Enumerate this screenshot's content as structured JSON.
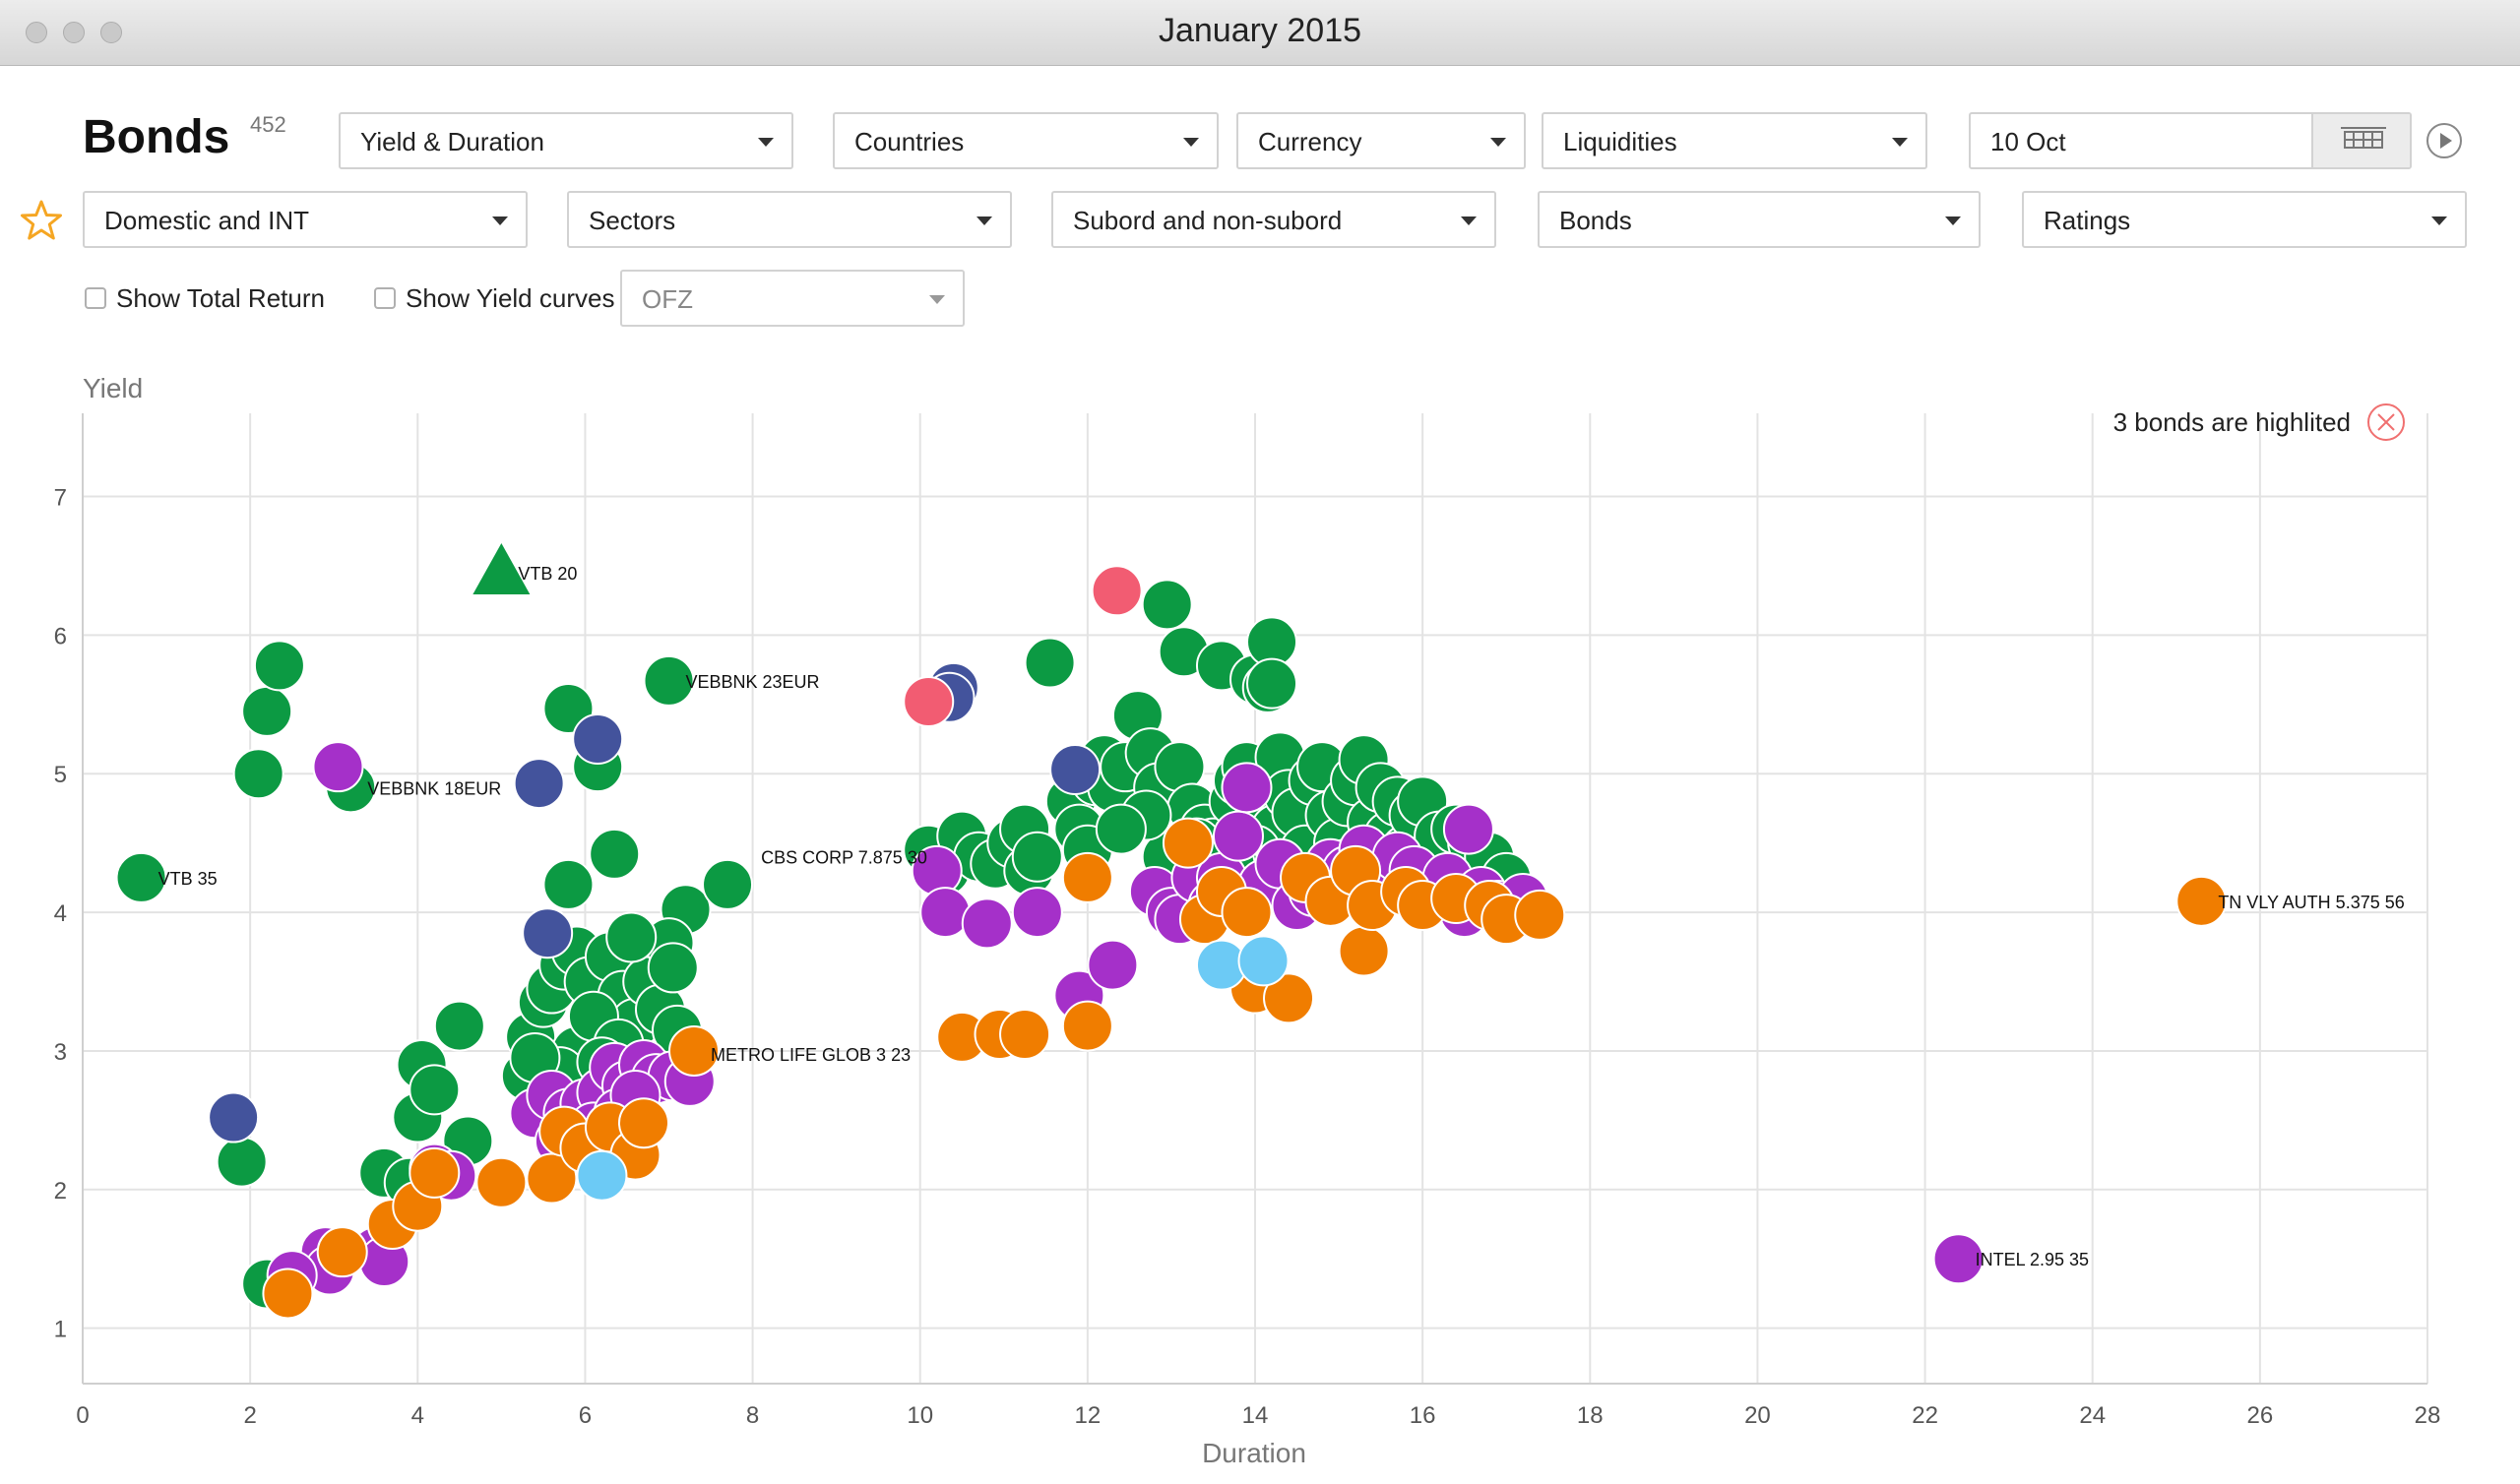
{
  "window": {
    "title": "January 2015"
  },
  "header": {
    "title": "Bonds",
    "count": "452"
  },
  "filters_row1": {
    "view": "Yield & Duration",
    "countries": "Countries",
    "currency": "Currency",
    "liquidities": "Liquidities",
    "date": "10 Oct"
  },
  "filters_row2": {
    "issuer_type": "Domestic and INT",
    "sectors": "Sectors",
    "subord": "Subord and non-subord",
    "bonds": "Bonds",
    "ratings": "Ratings"
  },
  "options": {
    "show_total_return": "Show Total Return",
    "show_yield_curves": "Show Yield curves",
    "curve_select": "OFZ",
    "show_total_return_checked": false,
    "show_yield_curves_checked": false
  },
  "highlight": {
    "text": "3 bonds are highlited"
  },
  "icons": {
    "favorite": "star-icon",
    "calendar": "calendar-grid-icon",
    "play": "play-icon",
    "clear": "close-circle-icon"
  },
  "colors": {
    "green": "#0c9a43",
    "purple": "#a530c9",
    "orange": "#f07d00",
    "navy": "#43539c",
    "light_blue": "#6ccaf5",
    "pink": "#f25c72",
    "star": "#f5a623",
    "clear": "#f07070"
  },
  "chart_data": {
    "type": "scatter",
    "xlabel": "Duration",
    "ylabel": "Yield",
    "xlim": [
      0,
      28
    ],
    "ylim": [
      0.6,
      7.6
    ],
    "xticks": [
      0,
      2,
      4,
      6,
      8,
      10,
      12,
      14,
      16,
      18,
      20,
      22,
      24,
      26,
      28
    ],
    "yticks": [
      1,
      2,
      3,
      4,
      5,
      6,
      7
    ],
    "grid": true,
    "labels": [
      {
        "text": "VTB 20",
        "x": 5.0,
        "y": 6.45,
        "dx": 0.2
      },
      {
        "text": "VEBBNK 23EUR",
        "x": 7.0,
        "y": 5.67,
        "dx": 0.2
      },
      {
        "text": "VEBBNK 18EUR",
        "x": 3.2,
        "y": 4.9,
        "dx": 0.2
      },
      {
        "text": "VTB 35",
        "x": 0.7,
        "y": 4.25,
        "dx": 0.2
      },
      {
        "text": "CBS CORP 7.875 30",
        "x": 10.1,
        "y": 4.4,
        "dx": -2.0
      },
      {
        "text": "METRO LIFE GLOB 3 23",
        "x": 7.3,
        "y": 2.98,
        "dx": 0.2
      },
      {
        "text": "TN VLY AUTH 5.375 56",
        "x": 25.3,
        "y": 4.08,
        "dx": 0.2
      },
      {
        "text": "INTEL 2.95 35",
        "x": 22.4,
        "y": 1.5,
        "dx": 0.2
      }
    ],
    "series": [
      {
        "color": "green",
        "shape": "triangle",
        "points": [
          [
            5.0,
            6.45
          ]
        ]
      },
      {
        "color": "green",
        "points": [
          [
            0.7,
            4.25
          ],
          [
            2.1,
            5.0
          ],
          [
            2.2,
            5.45
          ],
          [
            2.35,
            5.78
          ],
          [
            3.2,
            4.9
          ],
          [
            5.8,
            5.47
          ],
          [
            6.15,
            5.05
          ],
          [
            7.0,
            5.67
          ],
          [
            6.35,
            4.42
          ],
          [
            5.8,
            4.2
          ],
          [
            7.2,
            4.02
          ],
          [
            7.7,
            4.2
          ],
          [
            1.9,
            2.2
          ],
          [
            3.6,
            2.12
          ],
          [
            4.0,
            2.52
          ],
          [
            4.05,
            2.9
          ],
          [
            4.2,
            2.72
          ],
          [
            4.5,
            3.18
          ],
          [
            4.6,
            2.35
          ],
          [
            4.2,
            2.15
          ],
          [
            3.9,
            2.05
          ],
          [
            5.3,
            2.82
          ],
          [
            5.35,
            3.1
          ],
          [
            5.5,
            3.35
          ],
          [
            5.6,
            3.45
          ],
          [
            5.75,
            3.62
          ],
          [
            5.9,
            3.72
          ],
          [
            6.05,
            3.5
          ],
          [
            6.3,
            3.68
          ],
          [
            6.45,
            3.4
          ],
          [
            6.6,
            3.2
          ],
          [
            6.75,
            3.5
          ],
          [
            6.9,
            3.3
          ],
          [
            7.0,
            3.78
          ],
          [
            7.05,
            3.6
          ],
          [
            7.1,
            3.15
          ],
          [
            5.9,
            3.0
          ],
          [
            6.1,
            3.25
          ],
          [
            6.4,
            3.05
          ],
          [
            5.7,
            2.85
          ],
          [
            6.2,
            2.92
          ],
          [
            6.55,
            3.82
          ],
          [
            5.4,
            2.95
          ],
          [
            2.4,
            1.35
          ],
          [
            2.2,
            1.32
          ],
          [
            10.1,
            4.45
          ],
          [
            10.3,
            4.3
          ],
          [
            10.5,
            4.55
          ],
          [
            10.7,
            4.4
          ],
          [
            10.9,
            4.35
          ],
          [
            11.1,
            4.5
          ],
          [
            11.25,
            4.6
          ],
          [
            11.3,
            4.3
          ],
          [
            11.4,
            4.4
          ],
          [
            11.55,
            5.8
          ],
          [
            11.8,
            4.8
          ],
          [
            11.9,
            4.6
          ],
          [
            12.0,
            4.45
          ],
          [
            12.1,
            4.95
          ],
          [
            12.2,
            5.1
          ],
          [
            12.3,
            4.9
          ],
          [
            12.45,
            5.05
          ],
          [
            12.6,
            5.42
          ],
          [
            12.75,
            5.15
          ],
          [
            12.85,
            4.9
          ],
          [
            12.95,
            6.22
          ],
          [
            13.1,
            5.05
          ],
          [
            13.15,
            5.88
          ],
          [
            13.25,
            4.75
          ],
          [
            13.4,
            4.6
          ],
          [
            13.5,
            4.5
          ],
          [
            13.6,
            5.78
          ],
          [
            13.75,
            4.8
          ],
          [
            13.8,
            4.95
          ],
          [
            13.9,
            5.05
          ],
          [
            14.0,
            5.68
          ],
          [
            14.05,
            4.8
          ],
          [
            14.15,
            5.62
          ],
          [
            14.2,
            5.95
          ],
          [
            14.2,
            5.65
          ],
          [
            14.25,
            4.6
          ],
          [
            14.3,
            5.12
          ],
          [
            14.4,
            4.85
          ],
          [
            14.5,
            4.72
          ],
          [
            14.6,
            4.45
          ],
          [
            14.7,
            4.95
          ],
          [
            14.8,
            5.05
          ],
          [
            14.9,
            4.7
          ],
          [
            15.0,
            4.5
          ],
          [
            15.1,
            4.8
          ],
          [
            15.2,
            4.95
          ],
          [
            15.3,
            5.1
          ],
          [
            15.4,
            4.65
          ],
          [
            15.5,
            4.9
          ],
          [
            15.6,
            4.55
          ],
          [
            15.7,
            4.8
          ],
          [
            15.8,
            4.45
          ],
          [
            15.9,
            4.7
          ],
          [
            16.0,
            4.8
          ],
          [
            16.2,
            4.55
          ],
          [
            16.4,
            4.6
          ],
          [
            16.6,
            4.5
          ],
          [
            16.8,
            4.4
          ],
          [
            17.0,
            4.25
          ],
          [
            14.0,
            4.45
          ],
          [
            13.9,
            4.25
          ],
          [
            14.3,
            4.2
          ],
          [
            13.7,
            4.35
          ],
          [
            13.3,
            4.5
          ],
          [
            12.95,
            4.4
          ],
          [
            12.7,
            4.7
          ],
          [
            12.4,
            4.6
          ],
          [
            15.1,
            4.35
          ]
        ]
      },
      {
        "color": "purple",
        "points": [
          [
            3.05,
            5.05
          ],
          [
            2.9,
            1.55
          ],
          [
            2.95,
            1.42
          ],
          [
            2.5,
            1.38
          ],
          [
            3.5,
            1.55
          ],
          [
            3.6,
            1.48
          ],
          [
            4.2,
            2.15
          ],
          [
            4.4,
            2.1
          ],
          [
            5.4,
            2.55
          ],
          [
            5.6,
            2.68
          ],
          [
            5.8,
            2.55
          ],
          [
            6.0,
            2.62
          ],
          [
            6.2,
            2.7
          ],
          [
            6.35,
            2.88
          ],
          [
            6.5,
            2.75
          ],
          [
            6.7,
            2.9
          ],
          [
            6.85,
            2.8
          ],
          [
            7.05,
            2.82
          ],
          [
            7.25,
            2.78
          ],
          [
            5.7,
            2.35
          ],
          [
            6.1,
            2.45
          ],
          [
            6.4,
            2.55
          ],
          [
            6.6,
            2.68
          ],
          [
            10.2,
            4.3
          ],
          [
            10.3,
            4.0
          ],
          [
            10.8,
            3.92
          ],
          [
            11.4,
            4.0
          ],
          [
            11.9,
            3.4
          ],
          [
            12.3,
            3.62
          ],
          [
            12.8,
            4.15
          ],
          [
            13.0,
            4.0
          ],
          [
            13.1,
            3.95
          ],
          [
            13.3,
            4.25
          ],
          [
            13.5,
            4.05
          ],
          [
            13.6,
            4.25
          ],
          [
            13.8,
            4.55
          ],
          [
            13.9,
            4.9
          ],
          [
            14.1,
            4.2
          ],
          [
            14.3,
            4.35
          ],
          [
            14.5,
            4.05
          ],
          [
            14.7,
            4.15
          ],
          [
            14.9,
            4.35
          ],
          [
            15.1,
            4.3
          ],
          [
            15.3,
            4.45
          ],
          [
            15.5,
            4.2
          ],
          [
            15.7,
            4.4
          ],
          [
            15.9,
            4.3
          ],
          [
            16.1,
            4.1
          ],
          [
            16.3,
            4.25
          ],
          [
            16.5,
            4.0
          ],
          [
            16.7,
            4.15
          ],
          [
            16.9,
            4.05
          ],
          [
            17.1,
            3.98
          ],
          [
            17.2,
            4.1
          ],
          [
            16.55,
            4.6
          ],
          [
            22.4,
            1.5
          ]
        ]
      },
      {
        "color": "orange",
        "points": [
          [
            2.45,
            1.25
          ],
          [
            3.1,
            1.55
          ],
          [
            3.7,
            1.75
          ],
          [
            4.0,
            1.88
          ],
          [
            4.2,
            2.12
          ],
          [
            5.0,
            2.05
          ],
          [
            5.6,
            2.08
          ],
          [
            5.75,
            2.42
          ],
          [
            6.0,
            2.3
          ],
          [
            6.3,
            2.45
          ],
          [
            6.6,
            2.25
          ],
          [
            6.7,
            2.48
          ],
          [
            7.3,
            3.0
          ],
          [
            10.5,
            3.1
          ],
          [
            10.95,
            3.12
          ],
          [
            11.25,
            3.12
          ],
          [
            12.0,
            3.18
          ],
          [
            12.0,
            4.25
          ],
          [
            13.2,
            4.5
          ],
          [
            13.4,
            3.95
          ],
          [
            13.6,
            4.15
          ],
          [
            13.9,
            4.0
          ],
          [
            14.0,
            3.45
          ],
          [
            14.4,
            3.38
          ],
          [
            14.6,
            4.25
          ],
          [
            14.9,
            4.08
          ],
          [
            15.2,
            4.3
          ],
          [
            15.3,
            3.72
          ],
          [
            15.4,
            4.05
          ],
          [
            15.8,
            4.15
          ],
          [
            16.0,
            4.05
          ],
          [
            16.4,
            4.1
          ],
          [
            16.8,
            4.05
          ],
          [
            17.0,
            3.95
          ],
          [
            17.4,
            3.98
          ],
          [
            25.3,
            4.08
          ]
        ]
      },
      {
        "color": "navy",
        "points": [
          [
            1.8,
            2.52
          ],
          [
            5.45,
            4.93
          ],
          [
            5.55,
            3.85
          ],
          [
            6.15,
            5.25
          ],
          [
            10.4,
            5.62
          ],
          [
            10.35,
            5.55
          ],
          [
            11.85,
            5.03
          ]
        ]
      },
      {
        "color": "light_blue",
        "points": [
          [
            6.2,
            2.1
          ],
          [
            13.6,
            3.62
          ],
          [
            14.1,
            3.65
          ]
        ]
      },
      {
        "color": "pink",
        "points": [
          [
            10.1,
            5.52
          ],
          [
            12.35,
            6.32
          ]
        ]
      }
    ]
  }
}
